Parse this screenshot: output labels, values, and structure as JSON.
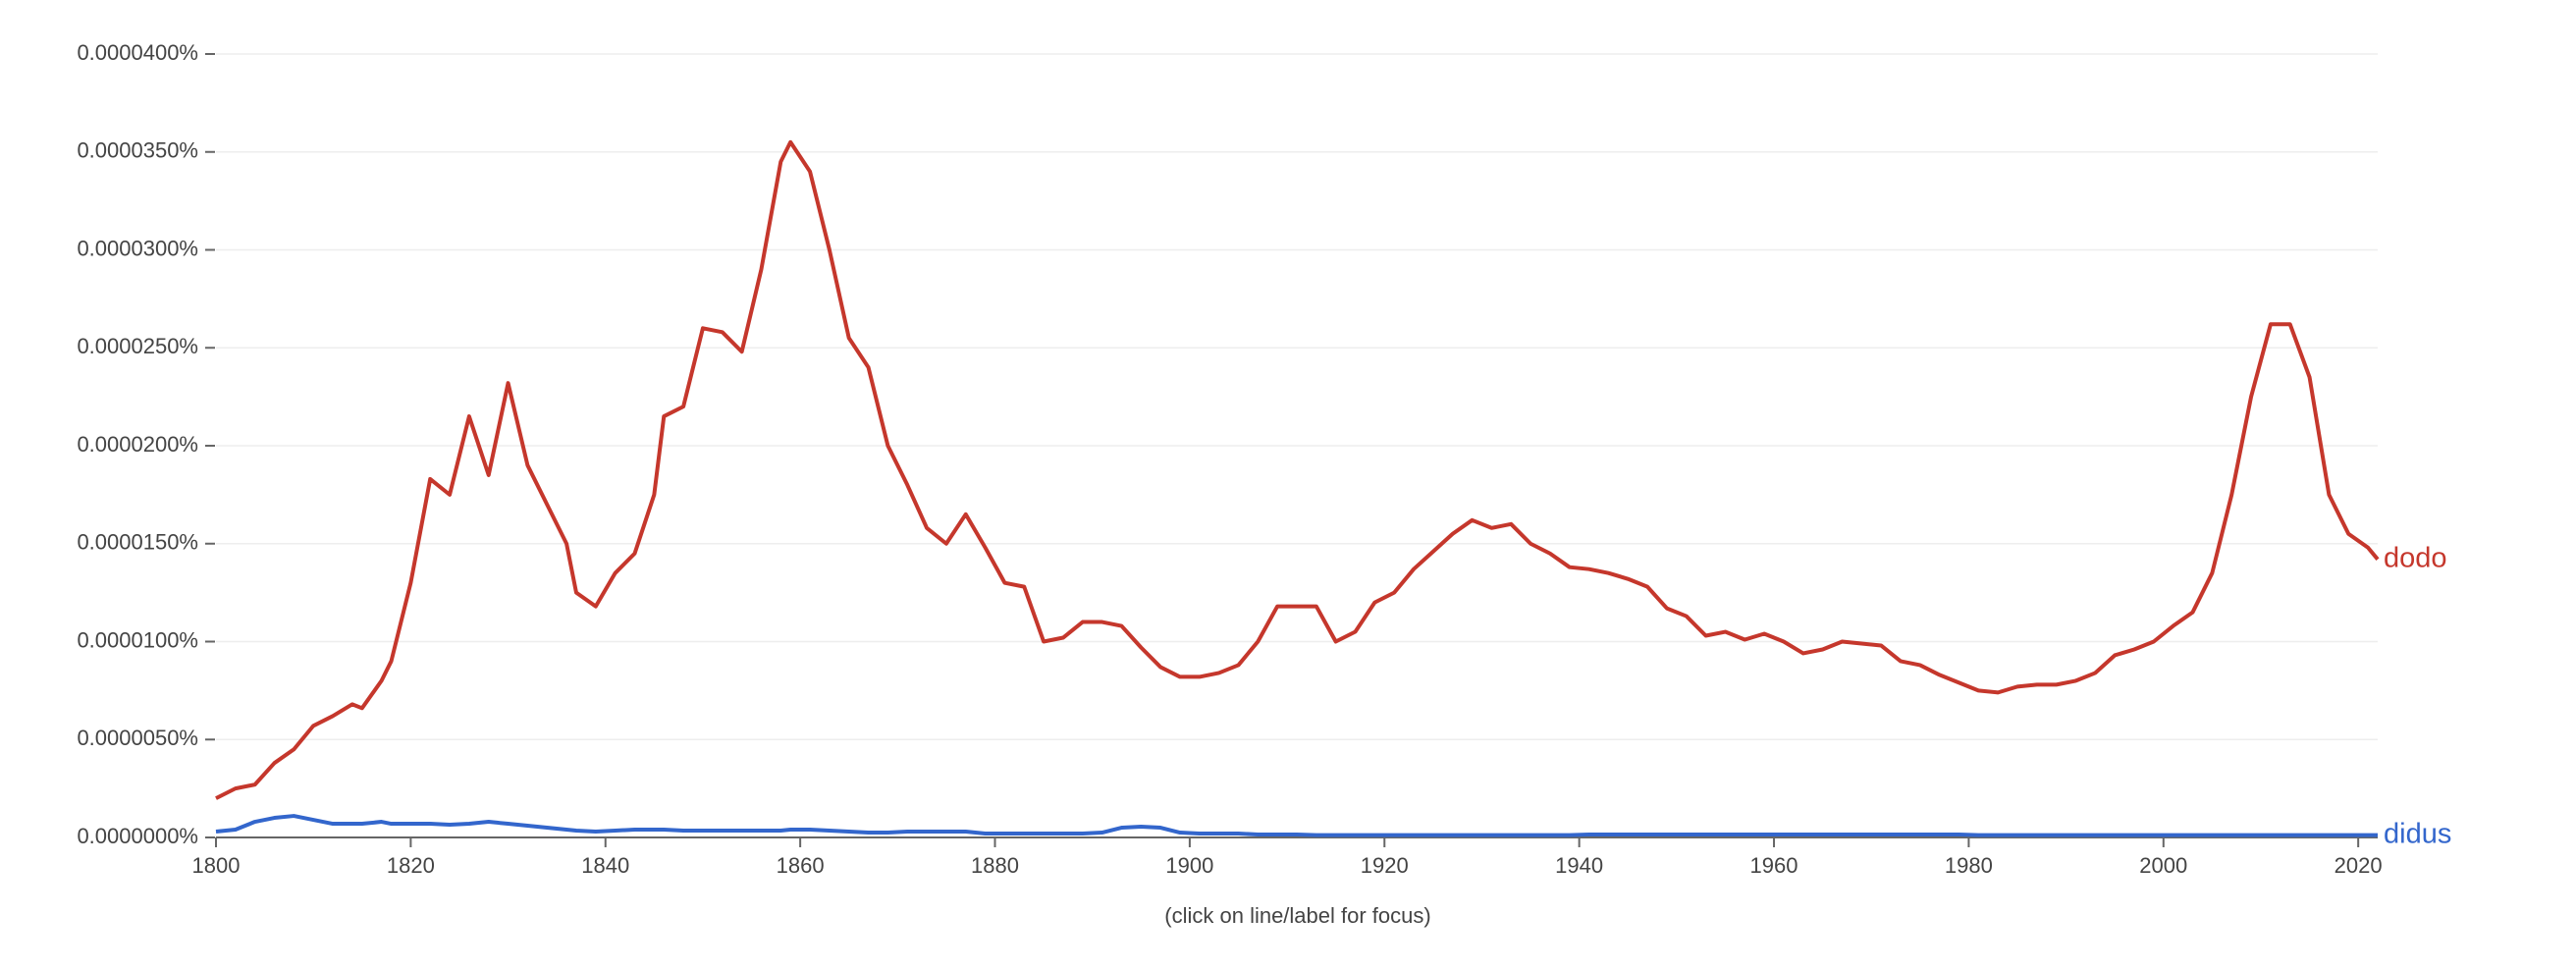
{
  "chart_data": {
    "type": "line",
    "annotation": "(click on line/label for focus)",
    "x": [
      1800,
      1802,
      1804,
      1806,
      1808,
      1810,
      1812,
      1814,
      1815,
      1817,
      1818,
      1820,
      1822,
      1824,
      1826,
      1828,
      1830,
      1832,
      1834,
      1836,
      1837,
      1839,
      1841,
      1843,
      1845,
      1846,
      1848,
      1850,
      1852,
      1854,
      1856,
      1858,
      1859,
      1861,
      1863,
      1865,
      1867,
      1869,
      1871,
      1873,
      1875,
      1877,
      1879,
      1881,
      1883,
      1885,
      1887,
      1889,
      1891,
      1893,
      1895,
      1897,
      1899,
      1901,
      1903,
      1905,
      1907,
      1909,
      1911,
      1913,
      1915,
      1917,
      1919,
      1921,
      1923,
      1925,
      1927,
      1929,
      1931,
      1933,
      1935,
      1937,
      1939,
      1941,
      1943,
      1945,
      1947,
      1949,
      1951,
      1953,
      1955,
      1957,
      1959,
      1961,
      1963,
      1965,
      1967,
      1969,
      1971,
      1973,
      1975,
      1977,
      1979,
      1981,
      1983,
      1985,
      1987,
      1989,
      1991,
      1993,
      1995,
      1997,
      1999,
      2001,
      2003,
      2005,
      2007,
      2009,
      2011,
      2013,
      2015,
      2017,
      2019,
      2021,
      2022
    ],
    "series": [
      {
        "name": "dodo",
        "color": "#c5372c",
        "values": [
          2e-06,
          2.5e-06,
          2.7e-06,
          3.8e-06,
          4.5e-06,
          5.7e-06,
          6.2e-06,
          6.8e-06,
          6.6e-06,
          8e-06,
          9e-06,
          1.3e-05,
          1.83e-05,
          1.75e-05,
          2.15e-05,
          1.85e-05,
          2.32e-05,
          1.9e-05,
          1.7e-05,
          1.5e-05,
          1.25e-05,
          1.18e-05,
          1.35e-05,
          1.45e-05,
          1.75e-05,
          2.15e-05,
          2.2e-05,
          2.6e-05,
          2.58e-05,
          2.48e-05,
          2.9e-05,
          3.45e-05,
          3.55e-05,
          3.4e-05,
          3e-05,
          2.55e-05,
          2.4e-05,
          2e-05,
          1.8e-05,
          1.58e-05,
          1.5e-05,
          1.65e-05,
          1.48e-05,
          1.3e-05,
          1.28e-05,
          1e-05,
          1.02e-05,
          1.1e-05,
          1.1e-05,
          1.08e-05,
          9.7e-06,
          8.7e-06,
          8.2e-06,
          8.2e-06,
          8.4e-06,
          8.8e-06,
          1e-05,
          1.18e-05,
          1.18e-05,
          1.18e-05,
          1e-05,
          1.05e-05,
          1.2e-05,
          1.25e-05,
          1.37e-05,
          1.46e-05,
          1.55e-05,
          1.62e-05,
          1.58e-05,
          1.6e-05,
          1.5e-05,
          1.45e-05,
          1.38e-05,
          1.37e-05,
          1.35e-05,
          1.32e-05,
          1.28e-05,
          1.17e-05,
          1.13e-05,
          1.03e-05,
          1.05e-05,
          1.01e-05,
          1.04e-05,
          1e-05,
          9.4e-06,
          9.6e-06,
          1e-05,
          9.9e-06,
          9.8e-06,
          9e-06,
          8.8e-06,
          8.3e-06,
          7.9e-06,
          7.5e-06,
          7.4e-06,
          7.7e-06,
          7.8e-06,
          7.8e-06,
          8e-06,
          8.4e-06,
          9.3e-06,
          9.6e-06,
          1e-05,
          1.08e-05,
          1.15e-05,
          1.35e-05,
          1.75e-05,
          2.25e-05,
          2.62e-05,
          2.62e-05,
          2.35e-05,
          1.75e-05,
          1.55e-05,
          1.48e-05,
          1.42e-05
        ]
      },
      {
        "name": "didus",
        "color": "#3366cc",
        "values": [
          3e-07,
          4e-07,
          8e-07,
          1e-06,
          1.1e-06,
          9e-07,
          7e-07,
          7e-07,
          7e-07,
          8e-07,
          7e-07,
          7e-07,
          7e-07,
          6.5e-07,
          7e-07,
          8e-07,
          7e-07,
          6e-07,
          5e-07,
          4e-07,
          3.5e-07,
          3e-07,
          3.5e-07,
          4e-07,
          4e-07,
          4e-07,
          3.5e-07,
          3.5e-07,
          3.5e-07,
          3.5e-07,
          3.5e-07,
          3.5e-07,
          4e-07,
          4e-07,
          3.5e-07,
          3e-07,
          2.5e-07,
          2.5e-07,
          3e-07,
          3e-07,
          3e-07,
          3e-07,
          2e-07,
          2e-07,
          2e-07,
          2e-07,
          2e-07,
          2e-07,
          2.5e-07,
          5e-07,
          5.5e-07,
          5e-07,
          2.5e-07,
          2e-07,
          2e-07,
          2e-07,
          1.5e-07,
          1.5e-07,
          1.5e-07,
          1.2e-07,
          1.2e-07,
          1.2e-07,
          1.2e-07,
          1.2e-07,
          1.2e-07,
          1.2e-07,
          1.2e-07,
          1.2e-07,
          1.2e-07,
          1.2e-07,
          1.2e-07,
          1.2e-07,
          1.2e-07,
          1.5e-07,
          1.5e-07,
          1.5e-07,
          1.5e-07,
          1.5e-07,
          1.5e-07,
          1.5e-07,
          1.5e-07,
          1.5e-07,
          1.5e-07,
          1.5e-07,
          1.5e-07,
          1.5e-07,
          1.5e-07,
          1.5e-07,
          1.5e-07,
          1.5e-07,
          1.5e-07,
          1.5e-07,
          1.5e-07,
          1.2e-07,
          1.2e-07,
          1.2e-07,
          1.2e-07,
          1.2e-07,
          1.2e-07,
          1.2e-07,
          1.2e-07,
          1.2e-07,
          1.2e-07,
          1.2e-07,
          1.2e-07,
          1.2e-07,
          1.2e-07,
          1.2e-07,
          1.2e-07,
          1.2e-07,
          1.2e-07,
          1.2e-07,
          1.2e-07,
          1.2e-07,
          1.2e-07
        ]
      }
    ],
    "xlim": [
      1800,
      2022
    ],
    "xticks": [
      1800,
      1820,
      1840,
      1860,
      1880,
      1900,
      1920,
      1940,
      1960,
      1980,
      2000,
      2020
    ],
    "ylim": [
      0,
      4e-05
    ],
    "yticks": [
      {
        "value": 0,
        "label": "0.0000000%"
      },
      {
        "value": 5e-06,
        "label": "0.0000050%"
      },
      {
        "value": 1e-05,
        "label": "0.0000100%"
      },
      {
        "value": 1.5e-05,
        "label": "0.0000150%"
      },
      {
        "value": 2e-05,
        "label": "0.0000200%"
      },
      {
        "value": 2.5e-05,
        "label": "0.0000250%"
      },
      {
        "value": 3e-05,
        "label": "0.0000300%"
      },
      {
        "value": 3.5e-05,
        "label": "0.0000350%"
      },
      {
        "value": 4e-05,
        "label": "0.0000400%"
      }
    ],
    "grid": true
  }
}
